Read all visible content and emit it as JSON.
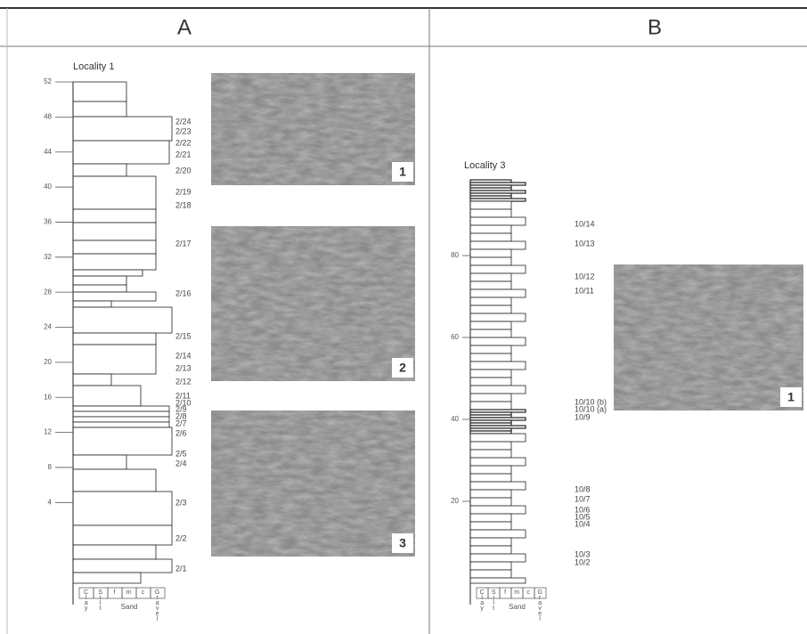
{
  "panels": [
    {
      "label": "A",
      "locality": "Locality 1",
      "depth_ticks": [
        52,
        48,
        44,
        40,
        36,
        32,
        28,
        24,
        20,
        16,
        12,
        8,
        4
      ],
      "samples": [
        "2/24",
        "2/23",
        "2/22",
        "2/21",
        "2/20",
        "2/19",
        "2/18",
        "2/17",
        "2/16",
        "2/15",
        "2/14",
        "2/13",
        "2/12",
        "2/11",
        "2/10",
        "2/9",
        "2/8",
        "2/7",
        "2/6",
        "2/5",
        "2/4",
        "2/3",
        "2/2",
        "2/1"
      ],
      "grain_columns": [
        "Clay",
        "Silt",
        "f",
        "m",
        "c",
        "Gravel"
      ],
      "grain_group": "Sand",
      "photos": [
        "1",
        "2",
        "3"
      ]
    },
    {
      "label": "B",
      "locality": "Locality 3",
      "depth_ticks": [
        80,
        60,
        40,
        20
      ],
      "samples": [
        "10/14",
        "10/13",
        "10/12",
        "10/11",
        "10/10 (b)",
        "10/10 (a)",
        "10/9",
        "10/8",
        "10/7",
        "10/6",
        "10/5",
        "10/4",
        "10/3",
        "10/2"
      ],
      "grain_columns": [
        "Clay",
        "Silt",
        "f",
        "m",
        "c",
        "Gravel"
      ],
      "grain_group": "Sand",
      "photos": [
        "1"
      ]
    }
  ]
}
